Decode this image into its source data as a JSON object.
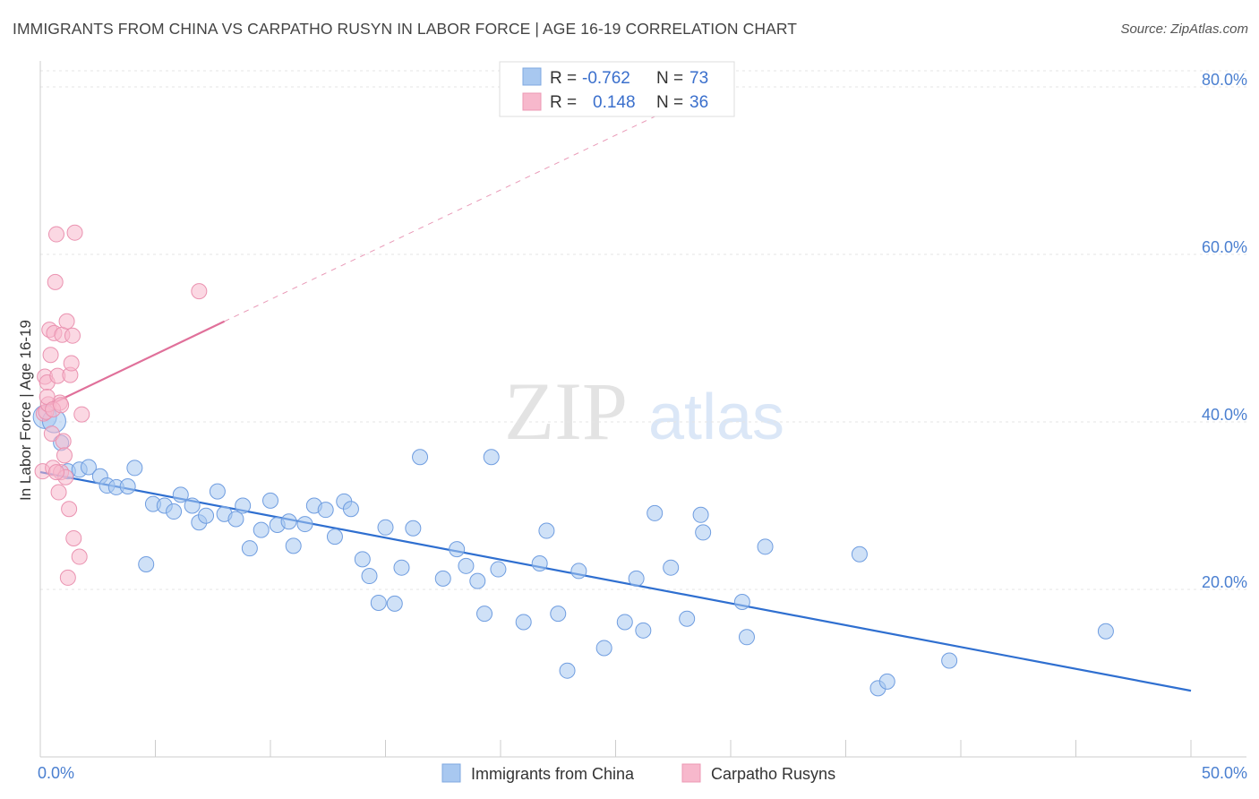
{
  "header": {
    "title": "IMMIGRANTS FROM CHINA VS CARPATHO RUSYN IN LABOR FORCE | AGE 16-19 CORRELATION CHART",
    "source": "Source: ZipAtlas.com"
  },
  "watermark": {
    "zip": "ZIP",
    "atlas": "atlas"
  },
  "legend_box": {
    "rows": [
      {
        "r_label": "R =",
        "r_value": "-0.762",
        "n_label": "N =",
        "n_value": "73",
        "color": "#a8c8f0"
      },
      {
        "r_label": "R =",
        "r_value": "0.148",
        "n_label": "N =",
        "n_value": "36",
        "color": "#f7b8cc"
      }
    ]
  },
  "chart_data": {
    "type": "scatter",
    "title": "IMMIGRANTS FROM CHINA VS CARPATHO RUSYN IN LABOR FORCE | AGE 16-19 CORRELATION CHART",
    "xlabel": "",
    "ylabel": "In Labor Force | Age 16-19",
    "xlim": [
      0,
      50
    ],
    "ylim": [
      0,
      80
    ],
    "x_tick_labels": [
      "0.0%",
      "50.0%"
    ],
    "y_ticks": [
      20,
      40,
      60,
      80
    ],
    "y_tick_labels": [
      "20.0%",
      "40.0%",
      "60.0%",
      "80.0%"
    ],
    "grid": true,
    "legend": "bottom-center",
    "series": [
      {
        "name": "Immigrants from China",
        "color": "#a8c8f0",
        "line_color": "#2f6fd0",
        "trend": {
          "x": [
            0,
            50
          ],
          "y": [
            34.0,
            7.9
          ],
          "dashed_extension": false
        },
        "points": [
          [
            0.2,
            40.6
          ],
          [
            0.6,
            40.1
          ],
          [
            0.9,
            37.5
          ],
          [
            1.2,
            34.1
          ],
          [
            1.7,
            34.3
          ],
          [
            2.1,
            34.6
          ],
          [
            2.6,
            33.5
          ],
          [
            2.9,
            32.4
          ],
          [
            3.3,
            32.2
          ],
          [
            3.8,
            32.3
          ],
          [
            4.1,
            34.5
          ],
          [
            4.6,
            23.0
          ],
          [
            4.9,
            30.2
          ],
          [
            5.4,
            30.0
          ],
          [
            5.8,
            29.3
          ],
          [
            6.1,
            31.3
          ],
          [
            6.6,
            30.0
          ],
          [
            6.9,
            28.0
          ],
          [
            7.2,
            28.8
          ],
          [
            7.7,
            31.7
          ],
          [
            8.0,
            29.0
          ],
          [
            8.5,
            28.4
          ],
          [
            8.8,
            30.0
          ],
          [
            9.1,
            24.9
          ],
          [
            9.6,
            27.1
          ],
          [
            10.0,
            30.6
          ],
          [
            10.3,
            27.7
          ],
          [
            10.8,
            28.1
          ],
          [
            11.0,
            25.2
          ],
          [
            11.5,
            27.8
          ],
          [
            11.9,
            30.0
          ],
          [
            12.4,
            29.5
          ],
          [
            12.8,
            26.3
          ],
          [
            13.2,
            30.5
          ],
          [
            13.5,
            29.6
          ],
          [
            14.0,
            23.6
          ],
          [
            14.3,
            21.6
          ],
          [
            14.7,
            18.4
          ],
          [
            15.0,
            27.4
          ],
          [
            15.4,
            18.3
          ],
          [
            15.7,
            22.6
          ],
          [
            16.2,
            27.3
          ],
          [
            16.5,
            35.8
          ],
          [
            17.5,
            21.3
          ],
          [
            18.1,
            24.8
          ],
          [
            18.5,
            22.8
          ],
          [
            19.0,
            21.0
          ],
          [
            19.3,
            17.1
          ],
          [
            19.6,
            35.8
          ],
          [
            19.9,
            22.4
          ],
          [
            21.0,
            16.1
          ],
          [
            21.7,
            23.1
          ],
          [
            22.0,
            27.0
          ],
          [
            22.5,
            17.1
          ],
          [
            22.9,
            10.3
          ],
          [
            23.4,
            22.2
          ],
          [
            24.5,
            13.0
          ],
          [
            25.4,
            16.1
          ],
          [
            25.9,
            21.3
          ],
          [
            26.2,
            15.1
          ],
          [
            26.7,
            29.1
          ],
          [
            27.4,
            22.6
          ],
          [
            28.1,
            16.5
          ],
          [
            28.7,
            28.9
          ],
          [
            28.8,
            26.8
          ],
          [
            30.5,
            18.5
          ],
          [
            30.7,
            14.3
          ],
          [
            31.5,
            25.1
          ],
          [
            35.6,
            24.2
          ],
          [
            36.4,
            8.2
          ],
          [
            36.8,
            9.0
          ],
          [
            39.5,
            11.5
          ],
          [
            46.3,
            15.0
          ]
        ]
      },
      {
        "name": "Carpatho Rusyns",
        "color": "#f7b8cc",
        "line_color": "#e0709a",
        "trend": {
          "x": [
            0,
            8.0
          ],
          "y": [
            41.5,
            52.0
          ],
          "dashed_extension": true,
          "dash_to": [
            27.5,
            77.5
          ]
        },
        "points": [
          [
            0.1,
            34.1
          ],
          [
            0.15,
            41.0
          ],
          [
            0.2,
            45.4
          ],
          [
            0.25,
            41.2
          ],
          [
            0.3,
            44.7
          ],
          [
            0.35,
            42.1
          ],
          [
            0.4,
            51.0
          ],
          [
            0.45,
            48.0
          ],
          [
            0.5,
            38.6
          ],
          [
            0.55,
            34.5
          ],
          [
            0.6,
            50.6
          ],
          [
            0.65,
            56.7
          ],
          [
            0.7,
            62.4
          ],
          [
            0.75,
            45.5
          ],
          [
            0.8,
            31.6
          ],
          [
            0.85,
            42.3
          ],
          [
            0.9,
            34.0
          ],
          [
            0.95,
            50.4
          ],
          [
            1.0,
            37.7
          ],
          [
            1.05,
            36.0
          ],
          [
            1.1,
            33.4
          ],
          [
            1.15,
            52.0
          ],
          [
            1.2,
            21.4
          ],
          [
            1.25,
            29.6
          ],
          [
            1.3,
            45.6
          ],
          [
            1.35,
            47.0
          ],
          [
            1.4,
            50.3
          ],
          [
            1.45,
            26.1
          ],
          [
            1.5,
            62.6
          ],
          [
            1.7,
            23.9
          ],
          [
            1.8,
            40.9
          ],
          [
            6.9,
            55.6
          ],
          [
            0.3,
            43.0
          ],
          [
            0.55,
            41.5
          ],
          [
            0.7,
            34.0
          ],
          [
            0.9,
            42.0
          ]
        ]
      }
    ]
  }
}
